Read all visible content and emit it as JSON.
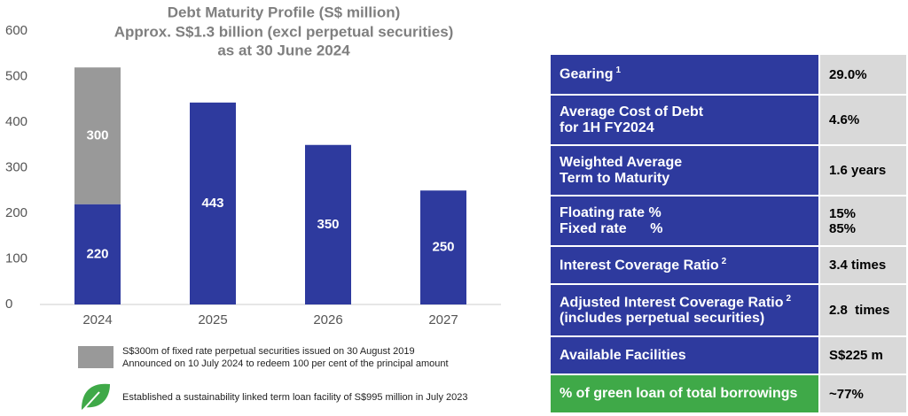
{
  "chart_data": {
    "type": "bar",
    "stacked": true,
    "title": "Debt Maturity Profile (S$ million)",
    "subtitle": [
      "Approx. S$1.3 billion (excl perpetual securities)",
      "as at 30 June 2024"
    ],
    "categories": [
      "2024",
      "2025",
      "2026",
      "2027"
    ],
    "series": [
      {
        "color": "#2e3a9e",
        "values": [
          220,
          443,
          350,
          250
        ]
      },
      {
        "name": "S$300m of fixed rate perpetual securities issued on 30 August 2019",
        "color": "#999999",
        "values": [
          300,
          null,
          null,
          null
        ]
      }
    ],
    "legend_note": "Announced on 10 July 2024 to redeem 100 per cent of the principal amount",
    "annotation": "Established a sustainability linked term loan facility of S$995 million in July 2023",
    "ylim": [
      0,
      600
    ],
    "yticks": [
      0,
      100,
      200,
      300,
      400,
      500,
      600
    ],
    "grid": false
  },
  "table": {
    "rows": [
      {
        "label": [
          "Gearing"
        ],
        "sup": "1",
        "value": [
          "29.0%"
        ]
      },
      {
        "label": [
          "Average Cost of Debt",
          "for 1H FY2024"
        ],
        "value": [
          "4.6%"
        ]
      },
      {
        "label": [
          "Weighted Average",
          "Term to Maturity"
        ],
        "value": [
          "1.6 years"
        ]
      },
      {
        "label": [
          "Floating rate %",
          "Fixed rate      %"
        ],
        "value": [
          "15%",
          "85%"
        ]
      },
      {
        "label": [
          "Interest Coverage Ratio"
        ],
        "sup": "2",
        "value": [
          "3.4 times"
        ]
      },
      {
        "label": [
          "Adjusted Interest Coverage Ratio",
          "(includes perpetual securities)"
        ],
        "sup": "2",
        "value": [
          "2.8  times"
        ]
      },
      {
        "label": [
          "Available Facilities"
        ],
        "value": [
          "S$225 m"
        ]
      },
      {
        "label": [
          "% of green loan of total borrowings"
        ],
        "value": [
          "~77%"
        ],
        "green": true
      }
    ]
  }
}
